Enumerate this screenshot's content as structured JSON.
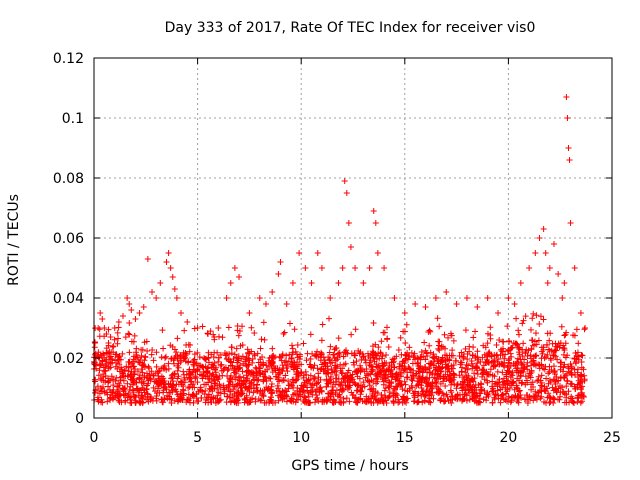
{
  "chart_data": {
    "type": "scatter",
    "title": "Day 333 of 2017, Rate Of TEC Index for receiver vis0",
    "xlabel": "GPS time / hours",
    "ylabel": "ROTI / TECUs",
    "xlim": [
      0,
      25
    ],
    "ylim": [
      0,
      0.12
    ],
    "x_ticks": [
      0,
      5,
      10,
      15,
      20,
      25
    ],
    "y_ticks": [
      0,
      0.02,
      0.04,
      0.06,
      0.08,
      0.1,
      0.12
    ],
    "x_tick_labels": [
      "0",
      "5",
      "10",
      "15",
      "20",
      "25"
    ],
    "y_tick_labels": [
      "0",
      "0.02",
      "0.04",
      "0.06",
      "0.08",
      "0.1",
      "0.12"
    ],
    "grid": true,
    "marker": "+",
    "marker_color": "#ff0000",
    "series": [
      {
        "name": "vis0",
        "x": [
          0.05,
          0.1,
          0.2,
          0.3,
          0.4,
          0.5,
          0.6,
          0.7,
          0.8,
          1.0,
          1.2,
          1.4,
          1.6,
          1.7,
          1.8,
          2.0,
          2.2,
          2.4,
          2.6,
          2.8,
          3.0,
          3.2,
          3.5,
          3.6,
          3.7,
          3.8,
          3.9,
          4.0,
          4.2,
          4.5,
          5.0,
          5.5,
          5.8,
          6.0,
          6.4,
          6.6,
          6.8,
          7.0,
          7.5,
          8.0,
          8.3,
          8.6,
          8.9,
          9.0,
          9.3,
          9.6,
          9.9,
          10.2,
          10.5,
          10.8,
          11.0,
          11.4,
          11.8,
          12.0,
          12.1,
          12.2,
          12.3,
          12.4,
          12.6,
          13.0,
          13.3,
          13.5,
          13.6,
          13.7,
          14.0,
          14.5,
          15.0,
          15.5,
          16.0,
          16.5,
          17.0,
          17.5,
          18.0,
          18.5,
          19.0,
          19.5,
          20.0,
          20.3,
          20.6,
          21.0,
          21.3,
          21.5,
          21.7,
          21.8,
          21.9,
          22.0,
          22.2,
          22.4,
          22.6,
          22.7,
          22.8,
          22.85,
          22.9,
          22.95,
          23.0,
          23.2,
          23.5,
          23.7
        ],
        "y": [
          0.025,
          0.02,
          0.03,
          0.035,
          0.033,
          0.03,
          0.028,
          0.025,
          0.027,
          0.03,
          0.032,
          0.034,
          0.04,
          0.038,
          0.036,
          0.033,
          0.035,
          0.037,
          0.053,
          0.042,
          0.04,
          0.045,
          0.052,
          0.055,
          0.05,
          0.047,
          0.043,
          0.04,
          0.035,
          0.032,
          0.03,
          0.028,
          0.027,
          0.03,
          0.04,
          0.045,
          0.05,
          0.047,
          0.035,
          0.04,
          0.038,
          0.042,
          0.048,
          0.052,
          0.038,
          0.045,
          0.055,
          0.05,
          0.045,
          0.055,
          0.05,
          0.04,
          0.045,
          0.05,
          0.079,
          0.075,
          0.065,
          0.057,
          0.05,
          0.045,
          0.05,
          0.069,
          0.065,
          0.055,
          0.05,
          0.04,
          0.035,
          0.038,
          0.037,
          0.04,
          0.042,
          0.038,
          0.04,
          0.037,
          0.04,
          0.035,
          0.04,
          0.038,
          0.045,
          0.05,
          0.055,
          0.06,
          0.063,
          0.055,
          0.045,
          0.05,
          0.058,
          0.048,
          0.04,
          0.045,
          0.107,
          0.1,
          0.09,
          0.086,
          0.065,
          0.05,
          0.035,
          0.03
        ]
      }
    ],
    "baseline_band": [
      0.005,
      0.022
    ]
  }
}
